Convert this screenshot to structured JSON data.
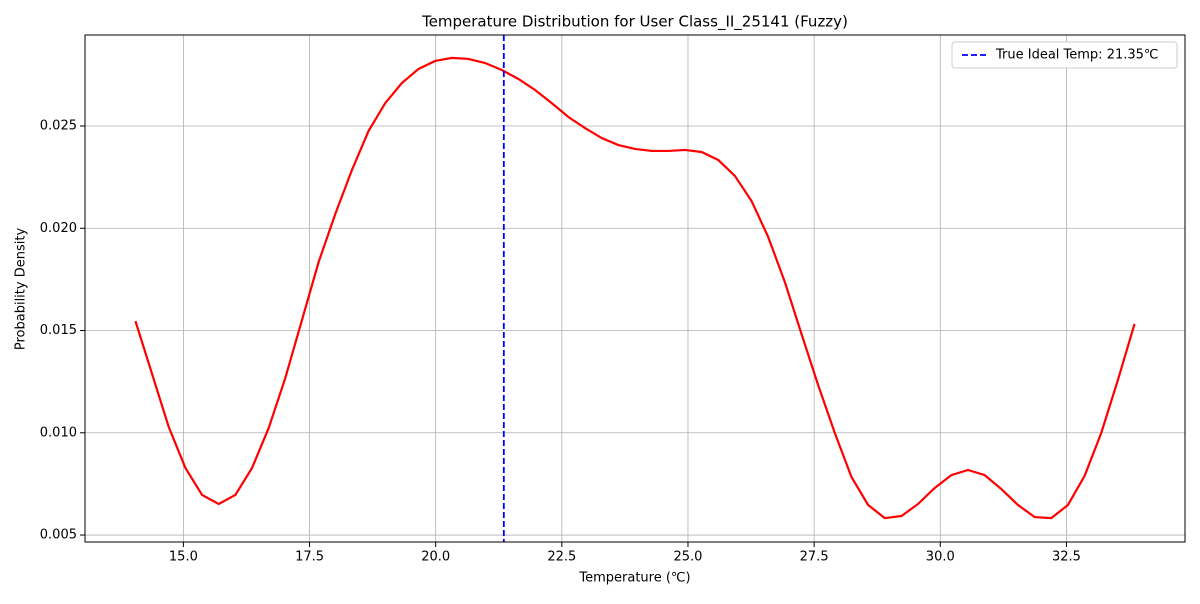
{
  "chart_data": {
    "type": "line",
    "title": "Temperature Distribution for User Class_II_25141 (Fuzzy)",
    "xlabel": "Temperature (℃)",
    "ylabel": "Probability Density",
    "x": [
      14.05,
      14.38,
      14.71,
      15.04,
      15.37,
      15.7,
      16.03,
      16.36,
      16.69,
      17.02,
      17.35,
      17.68,
      18.01,
      18.34,
      18.67,
      19.0,
      19.33,
      19.66,
      19.99,
      20.32,
      20.65,
      20.98,
      21.31,
      21.64,
      21.97,
      22.3,
      22.63,
      22.96,
      23.29,
      23.62,
      23.95,
      24.28,
      24.61,
      24.94,
      25.27,
      25.6,
      25.93,
      26.26,
      26.59,
      26.92,
      27.25,
      27.58,
      27.91,
      28.24,
      28.57,
      28.9,
      29.23,
      29.56,
      29.89,
      30.22,
      30.55,
      30.88,
      31.21,
      31.54,
      31.87,
      32.2,
      32.53,
      32.86,
      33.19,
      33.52,
      33.85
    ],
    "series": [
      {
        "color": "#ff0000",
        "values": [
          0.01546,
          0.01287,
          0.01028,
          0.00828,
          0.00696,
          0.00652,
          0.00696,
          0.00828,
          0.01023,
          0.01268,
          0.01551,
          0.01835,
          0.0207,
          0.02285,
          0.02476,
          0.02612,
          0.0271,
          0.02779,
          0.02818,
          0.02833,
          0.02828,
          0.02808,
          0.02774,
          0.0273,
          0.02676,
          0.02612,
          0.02544,
          0.0249,
          0.02441,
          0.02407,
          0.02388,
          0.02378,
          0.02378,
          0.02383,
          0.02373,
          0.02334,
          0.02256,
          0.02133,
          0.01957,
          0.01737,
          0.01483,
          0.01233,
          0.00999,
          0.00784,
          0.00647,
          0.00583,
          0.00593,
          0.00652,
          0.0073,
          0.00793,
          0.00818,
          0.00793,
          0.00725,
          0.00647,
          0.00588,
          0.00583,
          0.00647,
          0.00789,
          0.00999,
          0.01258,
          0.01532
        ]
      }
    ],
    "vline": {
      "value": 21.35,
      "name": "True Ideal Temp: 21.35℃",
      "color": "#0000ff"
    },
    "xlim": [
      13.05,
      34.85
    ],
    "ylim": [
      0.00466,
      0.02945
    ],
    "xticks": [
      {
        "value": 15,
        "label": "15.0"
      },
      17.5,
      {
        "value": 20,
        "label": "20.0"
      },
      22.5,
      {
        "value": 25,
        "label": "25.0"
      },
      27.5,
      {
        "value": 30,
        "label": "30.0"
      },
      32.5
    ],
    "yticks": [
      {
        "value": 0.005,
        "label": "0.005"
      },
      {
        "value": 0.01,
        "label": "0.010"
      },
      0.015,
      {
        "value": 0.02,
        "label": "0.020"
      },
      0.025
    ],
    "grid": true,
    "legend": "upper right"
  }
}
